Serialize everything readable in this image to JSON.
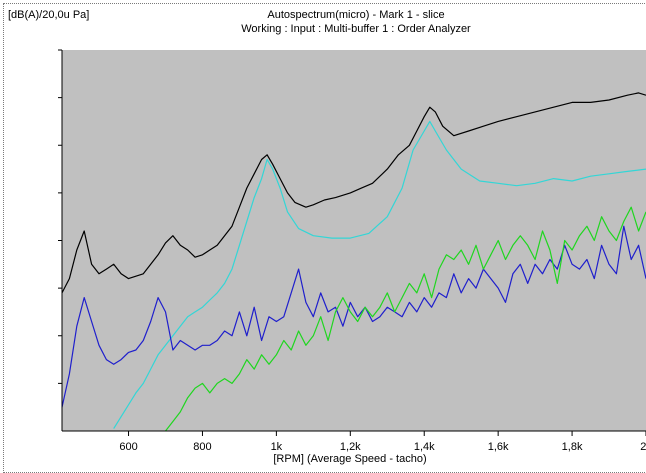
{
  "chart_data": {
    "type": "line",
    "title": "Autospectrum(micro) - Mark 1 - slice",
    "subtitle": "Working : Input : Multi-buffer 1 : Order Analyzer",
    "ylabel": "[dB(A)/20,0u Pa]",
    "xlabel": "[RPM] (Average Speed - tacho)",
    "xlim": [
      420,
      2000
    ],
    "ylim": [
      0,
      8
    ],
    "x_ticks": [
      600,
      800,
      1000,
      1200,
      1400,
      1600,
      1800,
      2000
    ],
    "x_tick_labels": [
      "600",
      "800",
      "1k",
      "1,2k",
      "1,4k",
      "1,6k",
      "1,8k",
      "2k"
    ],
    "y_ticks": [
      1,
      2,
      3,
      4,
      5,
      6,
      7,
      8
    ],
    "grid": false,
    "legend": "none",
    "plot_background": "#c0c0c0",
    "series": [
      {
        "color": "#000000",
        "x": [
          420,
          440,
          460,
          480,
          500,
          520,
          540,
          560,
          580,
          600,
          620,
          640,
          660,
          680,
          700,
          720,
          740,
          760,
          780,
          800,
          820,
          840,
          860,
          880,
          900,
          920,
          940,
          960,
          975,
          990,
          1010,
          1030,
          1050,
          1080,
          1100,
          1130,
          1160,
          1200,
          1230,
          1260,
          1300,
          1330,
          1360,
          1380,
          1400,
          1415,
          1430,
          1450,
          1480,
          1520,
          1560,
          1600,
          1650,
          1700,
          1750,
          1800,
          1850,
          1900,
          1950,
          1980,
          2000
        ],
        "y": [
          2.9,
          3.2,
          3.8,
          4.2,
          3.5,
          3.3,
          3.4,
          3.5,
          3.3,
          3.2,
          3.25,
          3.3,
          3.5,
          3.7,
          3.95,
          4.1,
          3.9,
          3.8,
          3.65,
          3.7,
          3.8,
          3.9,
          4.1,
          4.3,
          4.7,
          5.1,
          5.4,
          5.7,
          5.8,
          5.6,
          5.3,
          5.0,
          4.8,
          4.7,
          4.75,
          4.85,
          4.9,
          5.0,
          5.1,
          5.2,
          5.5,
          5.8,
          6.0,
          6.3,
          6.6,
          6.8,
          6.7,
          6.4,
          6.2,
          6.3,
          6.4,
          6.5,
          6.6,
          6.7,
          6.8,
          6.9,
          6.9,
          6.95,
          7.05,
          7.1,
          7.05
        ]
      },
      {
        "color": "#33d6d6",
        "x": [
          560,
          580,
          600,
          620,
          640,
          660,
          680,
          700,
          720,
          740,
          760,
          780,
          800,
          820,
          840,
          860,
          880,
          900,
          920,
          940,
          960,
          975,
          990,
          1010,
          1030,
          1060,
          1100,
          1150,
          1200,
          1250,
          1300,
          1340,
          1370,
          1400,
          1415,
          1430,
          1460,
          1500,
          1550,
          1600,
          1650,
          1700,
          1750,
          1800,
          1850,
          1900,
          1950,
          2000
        ],
        "y": [
          0.05,
          0.3,
          0.55,
          0.8,
          1.0,
          1.3,
          1.6,
          1.8,
          2.0,
          2.2,
          2.4,
          2.5,
          2.6,
          2.75,
          2.9,
          3.1,
          3.4,
          3.9,
          4.4,
          4.9,
          5.3,
          5.7,
          5.5,
          5.1,
          4.6,
          4.25,
          4.1,
          4.05,
          4.05,
          4.15,
          4.5,
          5.1,
          5.9,
          6.3,
          6.5,
          6.3,
          5.9,
          5.5,
          5.25,
          5.2,
          5.15,
          5.2,
          5.3,
          5.25,
          5.35,
          5.4,
          5.45,
          5.5
        ]
      },
      {
        "color": "#1f1fcc",
        "x": [
          420,
          440,
          460,
          480,
          500,
          520,
          540,
          560,
          580,
          600,
          620,
          640,
          660,
          680,
          700,
          720,
          740,
          760,
          780,
          800,
          820,
          840,
          860,
          880,
          900,
          920,
          940,
          960,
          980,
          1000,
          1020,
          1040,
          1060,
          1080,
          1100,
          1120,
          1140,
          1160,
          1180,
          1200,
          1220,
          1240,
          1260,
          1280,
          1300,
          1320,
          1340,
          1360,
          1380,
          1400,
          1420,
          1440,
          1460,
          1480,
          1500,
          1520,
          1540,
          1560,
          1580,
          1600,
          1620,
          1640,
          1660,
          1680,
          1700,
          1720,
          1740,
          1760,
          1780,
          1800,
          1820,
          1840,
          1860,
          1880,
          1900,
          1920,
          1940,
          1960,
          1980,
          2000
        ],
        "y": [
          0.5,
          1.2,
          2.2,
          2.8,
          2.3,
          1.8,
          1.5,
          1.4,
          1.5,
          1.65,
          1.7,
          1.9,
          2.3,
          2.8,
          2.5,
          1.7,
          1.9,
          1.8,
          1.7,
          1.8,
          1.8,
          1.9,
          2.1,
          2.0,
          2.5,
          2.0,
          2.6,
          1.9,
          2.4,
          2.3,
          2.4,
          2.9,
          3.4,
          2.7,
          2.4,
          2.9,
          2.5,
          2.6,
          2.2,
          2.7,
          2.4,
          2.6,
          2.3,
          2.4,
          2.6,
          2.5,
          2.4,
          2.7,
          2.5,
          2.8,
          2.6,
          2.9,
          2.8,
          3.3,
          2.9,
          3.2,
          3.0,
          3.4,
          3.2,
          3.0,
          2.7,
          3.3,
          3.5,
          3.1,
          3.5,
          3.3,
          3.6,
          3.4,
          3.9,
          3.5,
          3.4,
          3.6,
          3.2,
          3.9,
          3.5,
          3.3,
          4.3,
          3.6,
          3.9,
          3.2
        ]
      },
      {
        "color": "#1fd61f",
        "x": [
          700,
          720,
          740,
          760,
          780,
          800,
          820,
          840,
          860,
          880,
          900,
          920,
          940,
          960,
          980,
          1000,
          1020,
          1040,
          1060,
          1080,
          1100,
          1120,
          1140,
          1160,
          1180,
          1200,
          1220,
          1240,
          1260,
          1280,
          1300,
          1320,
          1340,
          1360,
          1380,
          1400,
          1420,
          1440,
          1460,
          1480,
          1500,
          1520,
          1540,
          1560,
          1580,
          1600,
          1620,
          1640,
          1660,
          1680,
          1700,
          1720,
          1740,
          1760,
          1780,
          1800,
          1820,
          1840,
          1860,
          1880,
          1900,
          1920,
          1940,
          1960,
          1980,
          2000
        ],
        "y": [
          0.0,
          0.2,
          0.4,
          0.7,
          0.9,
          1.0,
          0.8,
          1.0,
          1.1,
          1.0,
          1.2,
          1.5,
          1.3,
          1.6,
          1.4,
          1.6,
          1.9,
          1.7,
          2.1,
          1.8,
          2.0,
          2.4,
          1.9,
          2.5,
          2.8,
          2.5,
          2.3,
          2.6,
          2.4,
          2.6,
          2.9,
          2.5,
          2.8,
          3.1,
          2.9,
          3.3,
          2.8,
          3.4,
          3.7,
          3.6,
          3.8,
          3.5,
          3.9,
          3.4,
          3.7,
          4.0,
          3.6,
          3.9,
          4.1,
          3.9,
          3.6,
          4.2,
          3.8,
          3.1,
          4.0,
          3.8,
          4.1,
          4.3,
          4.0,
          4.5,
          4.2,
          4.0,
          4.4,
          4.7,
          4.2,
          4.6
        ]
      }
    ]
  }
}
